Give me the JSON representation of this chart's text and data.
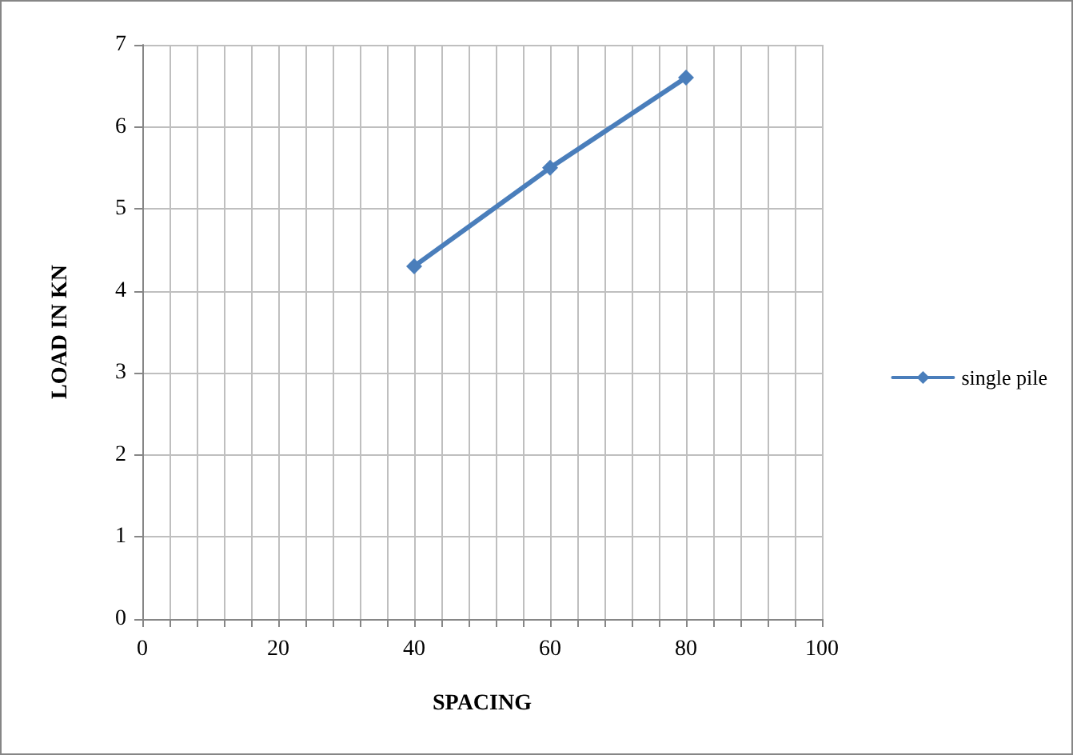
{
  "chart_data": {
    "type": "line",
    "xlabel": "SPACING",
    "ylabel": "LOAD IN KN",
    "x": [
      40,
      60,
      80
    ],
    "series": [
      {
        "name": "single pile",
        "color": "#4a7ebb",
        "values": [
          4.3,
          5.5,
          6.6
        ]
      }
    ],
    "xlim": [
      0,
      100
    ],
    "xticks": [
      0,
      {
        "value": 4,
        "label": null
      },
      {
        "value": 8,
        "label": null
      },
      {
        "value": 12,
        "label": null
      },
      {
        "value": 16,
        "label": null
      },
      20,
      {
        "value": 24,
        "label": null
      },
      {
        "value": 28,
        "label": null
      },
      {
        "value": 32,
        "label": null
      },
      {
        "value": 36,
        "label": null
      },
      40,
      {
        "value": 44,
        "label": null
      },
      {
        "value": 48,
        "label": null
      },
      {
        "value": 52,
        "label": null
      },
      {
        "value": 56,
        "label": null
      },
      60,
      {
        "value": 64,
        "label": null
      },
      {
        "value": 68,
        "label": null
      },
      {
        "value": 72,
        "label": null
      },
      {
        "value": 76,
        "label": null
      },
      80,
      {
        "value": 84,
        "label": null
      },
      {
        "value": 88,
        "label": null
      },
      {
        "value": 92,
        "label": null
      },
      {
        "value": 96,
        "label": null
      },
      100
    ],
    "ylim": [
      0,
      7
    ],
    "yticks": [
      0,
      1,
      2,
      3,
      4,
      5,
      6,
      7
    ],
    "grid": true,
    "legend": "right",
    "marker": "diamond",
    "line_style": "solid"
  }
}
